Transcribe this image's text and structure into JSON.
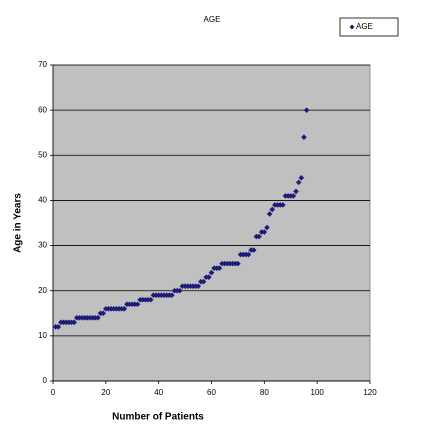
{
  "chart_data": {
    "type": "scatter",
    "title": "AGE",
    "x_label": "Number of Patients",
    "y_label": "Age in Years",
    "series": [
      {
        "name": "AGE",
        "color": "#1c1c78",
        "x": [
          1,
          2,
          3,
          4,
          5,
          6,
          7,
          8,
          9,
          10,
          11,
          12,
          13,
          14,
          15,
          16,
          17,
          18,
          19,
          20,
          21,
          22,
          23,
          24,
          25,
          26,
          27,
          28,
          29,
          30,
          31,
          32,
          33,
          34,
          35,
          36,
          37,
          38,
          39,
          40,
          41,
          42,
          43,
          44,
          45,
          46,
          47,
          48,
          49,
          50,
          51,
          52,
          53,
          54,
          55,
          56,
          57,
          58,
          59,
          60,
          61,
          62,
          63,
          64,
          65,
          66,
          67,
          68,
          69,
          70,
          71,
          72,
          73,
          74,
          75,
          76,
          77,
          78,
          79,
          80,
          81,
          82,
          83,
          84,
          85,
          86,
          87,
          88,
          89,
          90,
          91,
          92,
          93,
          94,
          95,
          96
        ],
        "values": [
          12,
          12,
          13,
          13,
          13,
          13,
          13,
          13,
          14,
          14,
          14,
          14,
          14,
          14,
          14,
          14,
          14,
          15,
          15,
          16,
          16,
          16,
          16,
          16,
          16,
          16,
          16,
          17,
          17,
          17,
          17,
          17,
          18,
          18,
          18,
          18,
          18,
          19,
          19,
          19,
          19,
          19,
          19,
          19,
          19,
          20,
          20,
          20,
          21,
          21,
          21,
          21,
          21,
          21,
          21,
          22,
          22,
          23,
          23,
          24,
          25,
          25,
          25,
          26,
          26,
          26,
          26,
          26,
          26,
          26,
          28,
          28,
          28,
          28,
          29,
          29,
          32,
          32,
          33,
          33,
          34,
          37,
          38,
          39,
          39,
          39,
          39,
          41,
          41,
          41,
          41,
          42,
          44,
          45,
          54,
          60
        ]
      }
    ],
    "xlim": [
      0,
      120
    ],
    "xticks": [
      0,
      20,
      40,
      60,
      80,
      100,
      120
    ],
    "ylim": [
      0,
      70
    ],
    "yticks": [
      0,
      10,
      20,
      30,
      40,
      50,
      60,
      70
    ],
    "grid": true,
    "legend": "top-right",
    "plot_background": "#c0c0c0"
  }
}
